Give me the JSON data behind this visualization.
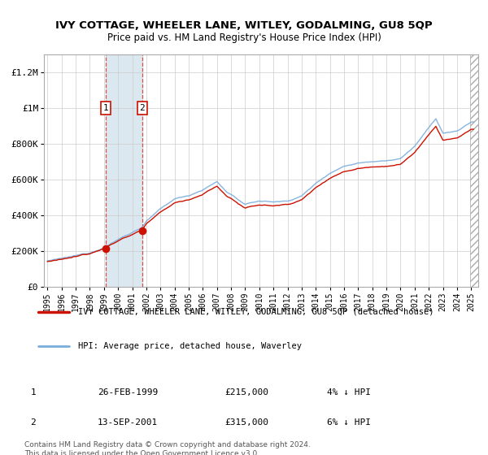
{
  "title": "IVY COTTAGE, WHEELER LANE, WITLEY, GODALMING, GU8 5QP",
  "subtitle": "Price paid vs. HM Land Registry's House Price Index (HPI)",
  "ylim": [
    0,
    1300000
  ],
  "yticks": [
    0,
    200000,
    400000,
    600000,
    800000,
    1000000,
    1200000
  ],
  "ytick_labels": [
    "£0",
    "£200K",
    "£400K",
    "£600K",
    "£800K",
    "£1M",
    "£1.2M"
  ],
  "xlim_start": 1994.75,
  "xlim_end": 2025.5,
  "xticks": [
    1995,
    1996,
    1997,
    1998,
    1999,
    2000,
    2001,
    2002,
    2003,
    2004,
    2005,
    2006,
    2007,
    2008,
    2009,
    2010,
    2011,
    2012,
    2013,
    2014,
    2015,
    2016,
    2017,
    2018,
    2019,
    2020,
    2021,
    2022,
    2023,
    2024,
    2025
  ],
  "sale1_date": 1999.12,
  "sale1_price": 215000,
  "sale2_date": 2001.7,
  "sale2_price": 315000,
  "hpi_color": "#7aaddc",
  "property_color": "#cc1100",
  "highlight_color": "#dce8f0",
  "hatch_start": 2024.92,
  "footnote": "Contains HM Land Registry data © Crown copyright and database right 2024.\nThis data is licensed under the Open Government Licence v3.0.",
  "legend_property": "IVY COTTAGE, WHEELER LANE, WITLEY, GODALMING, GU8 5QP (detached house)",
  "legend_hpi": "HPI: Average price, detached house, Waverley",
  "table_row1": [
    "1",
    "26-FEB-1999",
    "£215,000",
    "4% ↓ HPI"
  ],
  "table_row2": [
    "2",
    "13-SEP-2001",
    "£315,000",
    "6% ↓ HPI"
  ]
}
